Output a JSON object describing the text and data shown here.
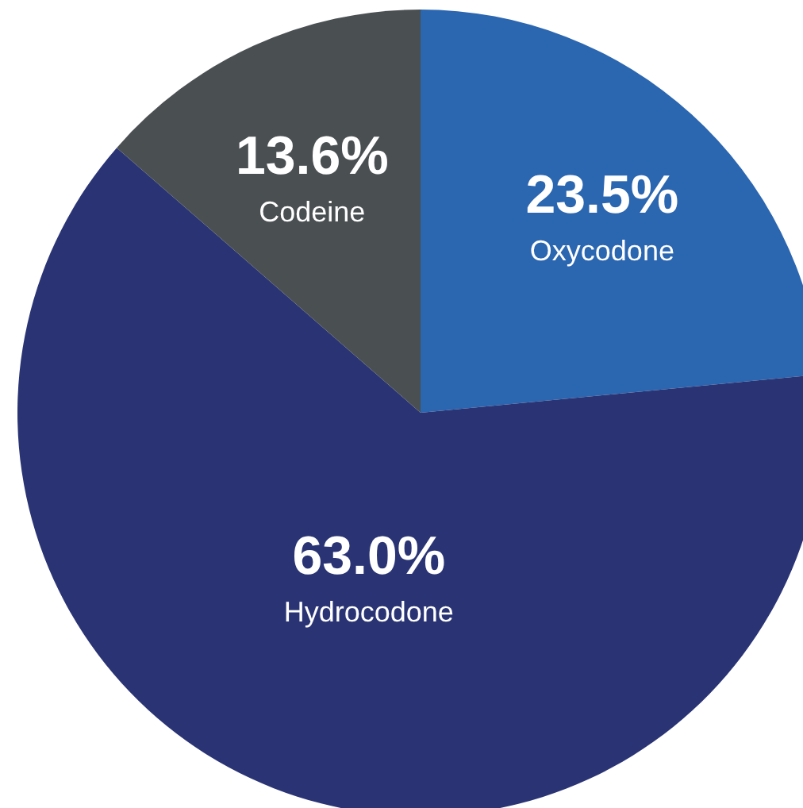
{
  "chart_data": {
    "type": "pie",
    "categories": [
      "Oxycodone",
      "Hydrocodone",
      "Codeine"
    ],
    "values": [
      23.5,
      63.0,
      13.6
    ],
    "colors": [
      "#2b66b0",
      "#2a3474",
      "#4a4f52"
    ],
    "value_labels": [
      "23.5%",
      "63.0%",
      "13.6%"
    ]
  }
}
